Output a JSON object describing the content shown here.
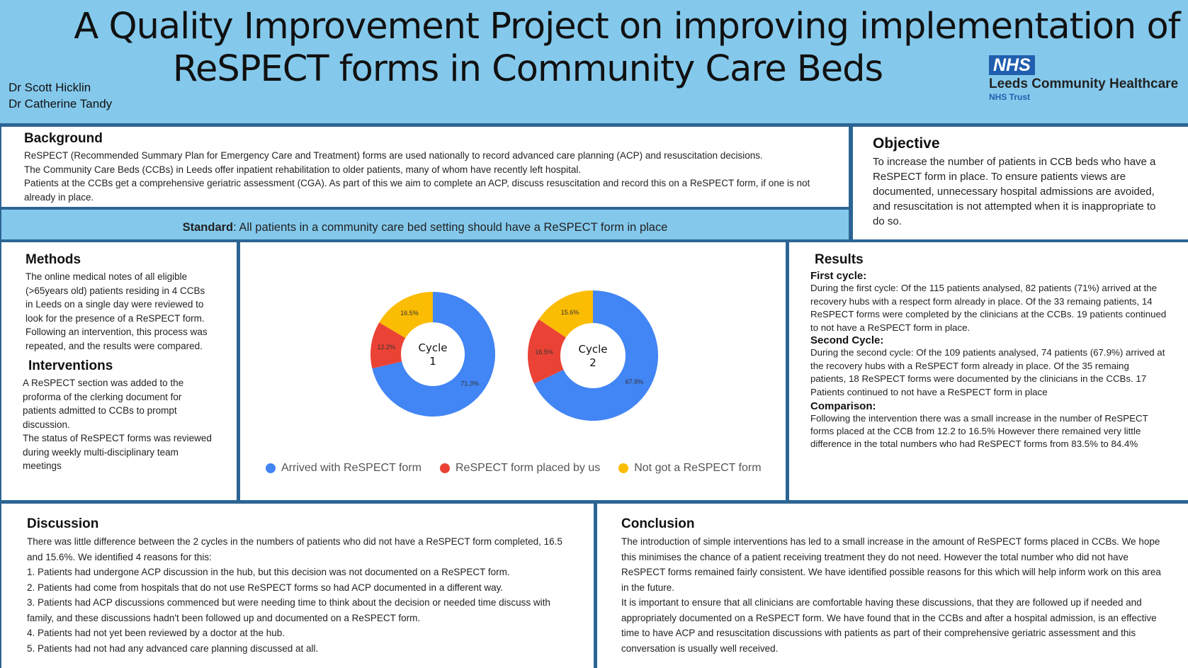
{
  "header": {
    "title_line1": "A Quality Improvement Project on improving implementation of",
    "title_line2": "ReSPECT forms in Community Care Beds",
    "authors": [
      "Dr Scott Hicklin",
      "Dr Catherine Tandy"
    ],
    "logo": {
      "nhs": "NHS",
      "org": "Leeds Community Healthcare",
      "trust": "NHS Trust"
    }
  },
  "background": {
    "title": "Background",
    "paragraphs": [
      "ReSPECT (Recommended Summary Plan for Emergency Care and Treatment) forms are used nationally to record advanced care planning (ACP) and resuscitation decisions.",
      "The Community Care Beds (CCBs) in Leeds offer inpatient rehabilitation to older patients, many of whom have recently left hospital.",
      "Patients at the CCBs get a comprehensive geriatric assessment (CGA).  As part of this we aim to complete an ACP, discuss resuscitation and record this on a ReSPECT form, if one is not already in place."
    ]
  },
  "standard": {
    "label": "Standard",
    "text": ": All patients in a community care bed setting should have a ReSPECT form in place"
  },
  "objective": {
    "title": "Objective",
    "text": "To increase the number of patients in CCB beds who have a ReSPECT form in place. To ensure patients views are documented, unnecessary hospital admissions are avoided, and resuscitation is not attempted when it is inappropriate to do so."
  },
  "methods": {
    "title": "Methods",
    "text": "The online medical notes of all eligible (>65years old) patients residing in 4 CCBs in Leeds on a single day were reviewed to look for the presence of a ReSPECT form. Following an intervention, this process was repeated, and the results were compared."
  },
  "interventions": {
    "title": "Interventions",
    "paragraphs": [
      "A ReSPECT section was added to the proforma of the clerking document for patients admitted to CCBs to prompt discussion.",
      "The status of ReSPECT forms was reviewed during weekly multi-disciplinary team meetings"
    ]
  },
  "chart_data": [
    {
      "type": "pie",
      "donut": true,
      "center_label": "Cycle 1",
      "categories": [
        "Arrived with ReSPECT form",
        "ReSPECT form placed by us",
        "Not got a ReSPECT form"
      ],
      "values": [
        71.3,
        12.2,
        16.5
      ],
      "labels": [
        "71.3%",
        "12.2%",
        "16.5%"
      ],
      "colors": [
        "#4285f4",
        "#ea4335",
        "#fbbc04"
      ],
      "legend": "bottom"
    },
    {
      "type": "pie",
      "donut": true,
      "center_label": "Cycle 2",
      "categories": [
        "Arrived with ReSPECT form",
        "ReSPECT form placed by us",
        "Not got a ReSPECT form"
      ],
      "values": [
        67.9,
        16.5,
        15.6
      ],
      "labels": [
        "67.9%",
        "16.5%",
        "15.6%"
      ],
      "colors": [
        "#4285f4",
        "#ea4335",
        "#fbbc04"
      ],
      "legend": "bottom"
    }
  ],
  "legend": [
    "Arrived with ReSPECT form",
    "ReSPECT form placed by us",
    "Not got a ReSPECT form"
  ],
  "results": {
    "title": "Results",
    "first_title": "First cycle:",
    "first": "During the first cycle: Of the 115 patients analysed, 82 patients (71%) arrived at the recovery hubs with a respect form already in place. Of the 33 remaing patients, 14 ReSPECT forms were completed by the clinicians at the CCBs. 19 patients continued to not have a ReSPECT form in place.",
    "second_title": "Second Cycle:",
    "second": "During the second cycle: Of the 109 patients analysed, 74 patients (67.9%) arrived at the recovery hubs with a ReSPECT form already in place. Of the 35 remaing patients, 18 ReSPECT forms were documented by the clinicians in the CCBs. 17 Patients continued to not have a ReSPECT form in place",
    "comparison_title": "Comparison:",
    "comparison": "Following the intervention there was a small increase in the number of ReSPECT forms placed at the CCB from 12.2 to 16.5% However there remained very little difference in the total numbers who had ReSPECT forms from 83.5% to 84.4%"
  },
  "discussion": {
    "title": "Discussion",
    "paragraphs": [
      "There was little difference between the 2 cycles in the numbers of patients who did not have a ReSPECT form completed, 16.5 and 15.6%. We identified 4 reasons for this:",
      "1. Patients had undergone ACP discussion in the hub, but this decision was not documented on a ReSPECT form.",
      "2. Patients had come from hospitals that do not use ReSPECT forms so had ACP documented in a different way.",
      "3. Patients had ACP discussions commenced but were needing time to think about the decision or needed time discuss with family, and these discussions hadn't been followed up and documented on a ReSPECT form.",
      "4. Patients had not yet been reviewed by a doctor at the hub.",
      "5. Patients had not had any advanced care planning discussed at all."
    ]
  },
  "conclusion": {
    "title": "Conclusion",
    "paragraphs": [
      "The introduction of simple interventions has led to a small increase in the amount of ReSPECT forms placed in CCBs. We hope this minimises the chance of a patient receiving treatment they do not need. However the total number who did not have ReSPECT forms remained fairly consistent. We have identified possible reasons for this which will help inform work on this area in the future.",
      "It is important to ensure that all clinicians are comfortable having these discussions,  that they are followed up if needed and appropriately documented on a ReSPECT form.  We have found that in the CCBs and after a hospital admission, is an effective time to have ACP and resuscitation discussions with patients as part of their comprehensive geriatric assessment and this conversation is usually well received."
    ]
  }
}
